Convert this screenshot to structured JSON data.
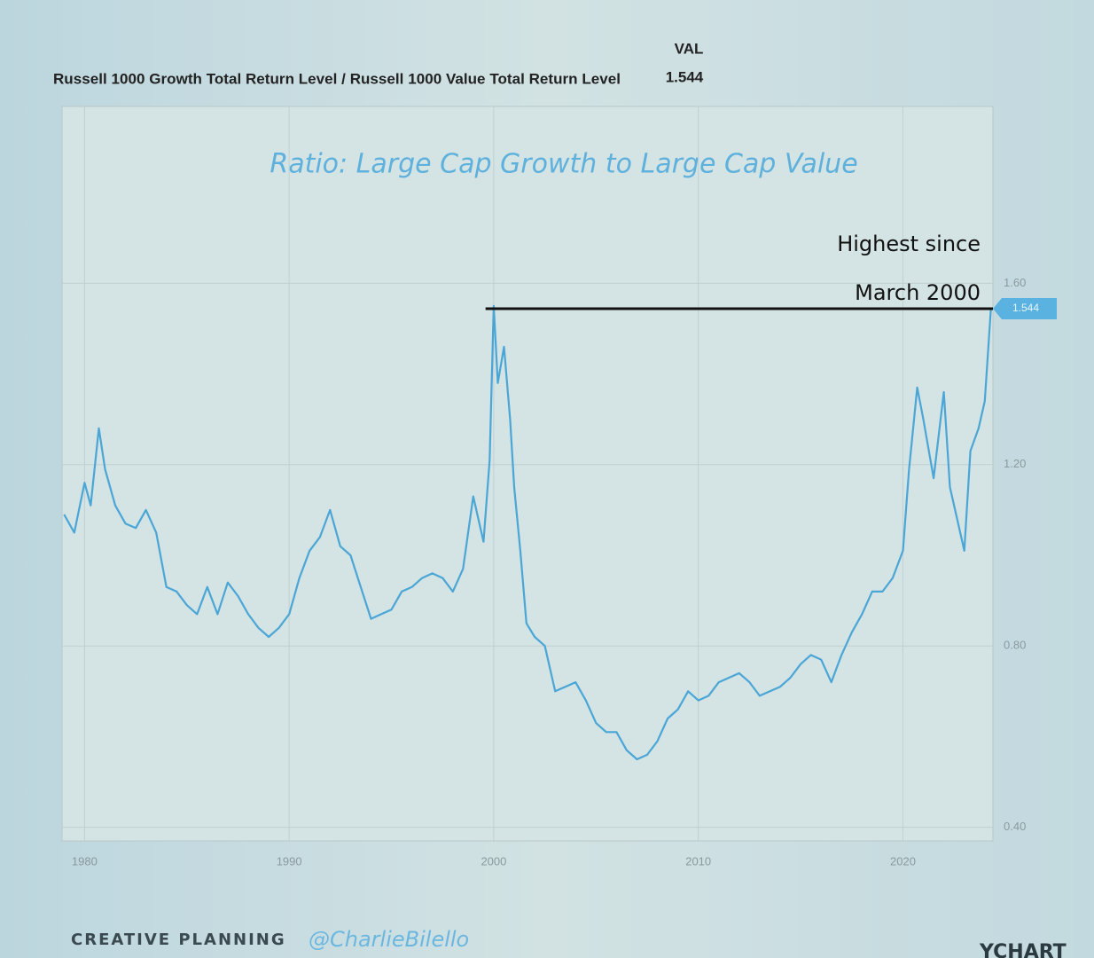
{
  "header": {
    "series_label": "Russell 1000 Growth Total Return Level / Russell 1000 Value Total Return Level",
    "value_heading": "VAL"
  },
  "chart_data": {
    "type": "line",
    "title": "Ratio: Large Cap Growth to Large Cap Value",
    "current_value": 1.544,
    "color": "#4aa6d6",
    "x": [
      1979.0,
      1979.5,
      1980.0,
      1980.3,
      1980.7,
      1981.0,
      1981.5,
      1982.0,
      1982.5,
      1983.0,
      1983.5,
      1984.0,
      1984.5,
      1985.0,
      1985.5,
      1986.0,
      1986.5,
      1987.0,
      1987.5,
      1988.0,
      1988.5,
      1989.0,
      1989.5,
      1990.0,
      1990.5,
      1991.0,
      1991.5,
      1992.0,
      1992.5,
      1993.0,
      1993.5,
      1994.0,
      1994.5,
      1995.0,
      1995.5,
      1996.0,
      1996.5,
      1997.0,
      1997.5,
      1998.0,
      1998.5,
      1999.0,
      1999.5,
      1999.8,
      2000.0,
      2000.2,
      2000.5,
      2000.8,
      2001.0,
      2001.3,
      2001.6,
      2002.0,
      2002.5,
      2003.0,
      2003.5,
      2004.0,
      2004.5,
      2005.0,
      2005.5,
      2006.0,
      2006.5,
      2007.0,
      2007.5,
      2008.0,
      2008.5,
      2009.0,
      2009.5,
      2010.0,
      2010.5,
      2011.0,
      2011.5,
      2012.0,
      2012.5,
      2013.0,
      2013.5,
      2014.0,
      2014.5,
      2015.0,
      2015.5,
      2016.0,
      2016.5,
      2017.0,
      2017.5,
      2018.0,
      2018.5,
      2019.0,
      2019.5,
      2020.0,
      2020.3,
      2020.7,
      2021.0,
      2021.5,
      2022.0,
      2022.3,
      2022.7,
      2023.0,
      2023.3,
      2023.7,
      2024.0,
      2024.3
    ],
    "values": [
      1.09,
      1.05,
      1.16,
      1.11,
      1.28,
      1.19,
      1.11,
      1.07,
      1.06,
      1.1,
      1.05,
      0.93,
      0.92,
      0.89,
      0.87,
      0.93,
      0.87,
      0.94,
      0.91,
      0.87,
      0.84,
      0.82,
      0.84,
      0.87,
      0.95,
      1.01,
      1.04,
      1.1,
      1.02,
      1.0,
      0.93,
      0.86,
      0.87,
      0.88,
      0.92,
      0.93,
      0.95,
      0.96,
      0.95,
      0.92,
      0.97,
      1.13,
      1.03,
      1.21,
      1.55,
      1.38,
      1.46,
      1.3,
      1.15,
      1.01,
      0.85,
      0.82,
      0.8,
      0.7,
      0.71,
      0.72,
      0.68,
      0.63,
      0.61,
      0.61,
      0.57,
      0.55,
      0.56,
      0.59,
      0.64,
      0.66,
      0.7,
      0.68,
      0.69,
      0.72,
      0.73,
      0.74,
      0.72,
      0.69,
      0.7,
      0.71,
      0.73,
      0.76,
      0.78,
      0.77,
      0.72,
      0.78,
      0.83,
      0.87,
      0.92,
      0.92,
      0.95,
      1.01,
      1.19,
      1.37,
      1.3,
      1.17,
      1.36,
      1.15,
      1.07,
      1.01,
      1.23,
      1.28,
      1.34,
      1.544
    ],
    "xlim": [
      1978.9,
      2024.4
    ],
    "xticks": [
      1980,
      1990,
      2000,
      2010,
      2020
    ],
    "ylim": [
      0.37,
      1.99
    ],
    "yticks": [
      {
        "value": 0.4,
        "label": "0.40"
      },
      {
        "value": 0.8,
        "label": "0.80"
      },
      {
        "value": 1.2,
        "label": "1.20"
      },
      {
        "value": 1.6,
        "label": "1.60"
      }
    ],
    "grid": true,
    "reference_line": {
      "value": 1.544,
      "from": 1999.6
    },
    "annotation": [
      "Highest since",
      "March 2000"
    ]
  },
  "footer": {
    "brand": "CREATIVE PLANNING",
    "handle": "@CharlieBilello",
    "source": "YCHART"
  }
}
